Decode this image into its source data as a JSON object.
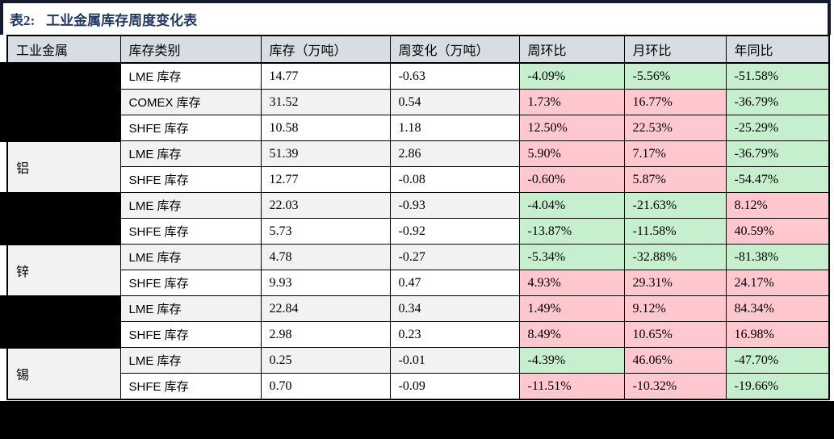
{
  "title": {
    "prefix": "表2:",
    "text": "工业金属库存周度变化表"
  },
  "colors": {
    "positive_cell_pink": "#ffc7ce",
    "negative_cell_green": "#c6efce",
    "header_bg": "#d8dce3",
    "alt_row_bg": "#f2f2f2",
    "title_navy": "#1f3864",
    "frame_line": "#141a2e",
    "redaction_black": "#000000"
  },
  "table": {
    "headers": [
      "工业金属",
      "库存类别",
      "库存（万吨）",
      "周变化（万吨）",
      "周环比",
      "月环比",
      "年同比"
    ],
    "groups": [
      {
        "metal": "",
        "redacted": true,
        "rows": [
          {
            "type": "LME 库存",
            "inv": "14.77",
            "chg": "-0.63",
            "wow": "-4.09%",
            "wow_c": "green",
            "mom": "-5.56%",
            "mom_c": "green",
            "yoy": "-51.58%",
            "yoy_c": "green"
          },
          {
            "type": "COMEX 库存",
            "inv": "31.52",
            "chg": "0.54",
            "wow": "1.73%",
            "wow_c": "pink",
            "mom": "16.77%",
            "mom_c": "pink",
            "yoy": "-36.79%",
            "yoy_c": "green"
          },
          {
            "type": "SHFE 库存",
            "inv": "10.58",
            "chg": "1.18",
            "wow": "12.50%",
            "wow_c": "pink",
            "mom": "22.53%",
            "mom_c": "pink",
            "yoy": "-25.29%",
            "yoy_c": "green"
          }
        ]
      },
      {
        "metal": "铝",
        "redacted": false,
        "rows": [
          {
            "type": "LME 库存",
            "inv": "51.39",
            "chg": "2.86",
            "wow": "5.90%",
            "wow_c": "pink",
            "mom": "7.17%",
            "mom_c": "pink",
            "yoy": "-36.79%",
            "yoy_c": "green"
          },
          {
            "type": "SHFE 库存",
            "inv": "12.77",
            "chg": "-0.08",
            "wow": "-0.60%",
            "wow_c": "pink",
            "mom": "5.87%",
            "mom_c": "pink",
            "yoy": "-54.47%",
            "yoy_c": "green"
          }
        ]
      },
      {
        "metal": "",
        "redacted": true,
        "rows": [
          {
            "type": "LME 库存",
            "inv": "22.03",
            "chg": "-0.93",
            "wow": "-4.04%",
            "wow_c": "green",
            "mom": "-21.63%",
            "mom_c": "green",
            "yoy": "8.12%",
            "yoy_c": "pink"
          },
          {
            "type": "SHFE 库存",
            "inv": "5.73",
            "chg": "-0.92",
            "wow": "-13.87%",
            "wow_c": "green",
            "mom": "-11.58%",
            "mom_c": "green",
            "yoy": "40.59%",
            "yoy_c": "pink"
          }
        ]
      },
      {
        "metal": "锌",
        "redacted": false,
        "rows": [
          {
            "type": "LME 库存",
            "inv": "4.78",
            "chg": "-0.27",
            "wow": "-5.34%",
            "wow_c": "green",
            "mom": "-32.88%",
            "mom_c": "green",
            "yoy": "-81.38%",
            "yoy_c": "green"
          },
          {
            "type": "SHFE 库存",
            "inv": "9.93",
            "chg": "0.47",
            "wow": "4.93%",
            "wow_c": "pink",
            "mom": "29.31%",
            "mom_c": "pink",
            "yoy": "24.17%",
            "yoy_c": "pink"
          }
        ]
      },
      {
        "metal": "",
        "redacted": true,
        "rows": [
          {
            "type": "LME 库存",
            "inv": "22.84",
            "chg": "0.34",
            "wow": "1.49%",
            "wow_c": "pink",
            "mom": "9.12%",
            "mom_c": "pink",
            "yoy": "84.34%",
            "yoy_c": "pink"
          },
          {
            "type": "SHFE 库存",
            "inv": "2.98",
            "chg": "0.23",
            "wow": "8.49%",
            "wow_c": "pink",
            "mom": "10.65%",
            "mom_c": "pink",
            "yoy": "16.98%",
            "yoy_c": "pink"
          }
        ]
      },
      {
        "metal": "锡",
        "redacted": false,
        "rows": [
          {
            "type": "LME 库存",
            "inv": "0.25",
            "chg": "-0.01",
            "wow": "-4.39%",
            "wow_c": "green",
            "mom": "46.06%",
            "mom_c": "pink",
            "yoy": "-47.70%",
            "yoy_c": "green"
          },
          {
            "type": "SHFE 库存",
            "inv": "0.70",
            "chg": "-0.09",
            "wow": "-11.51%",
            "wow_c": "pink",
            "mom": "-10.32%",
            "mom_c": "pink",
            "yoy": "-19.66%",
            "yoy_c": "green"
          }
        ]
      }
    ]
  }
}
